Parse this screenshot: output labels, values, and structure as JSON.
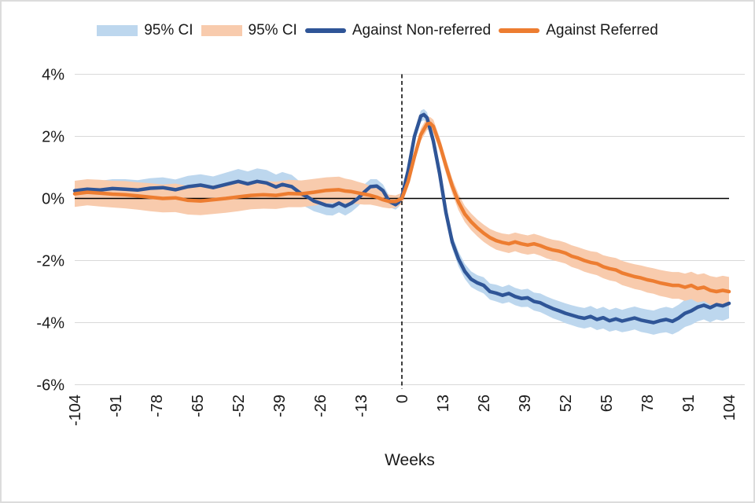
{
  "figure": {
    "background": "#ffffff",
    "border_color": "#dcdcdc"
  },
  "legend": {
    "items": [
      {
        "name": "legend-ci-nonreferred",
        "label": "95% CI",
        "swatch": "band",
        "color": "#BDD7EE"
      },
      {
        "name": "legend-ci-referred",
        "label": "95% CI",
        "swatch": "band",
        "color": "#F8CBAD"
      },
      {
        "name": "legend-against-non-referred",
        "label": "Against Non-referred",
        "swatch": "line",
        "color": "#2F5597"
      },
      {
        "name": "legend-against-referred",
        "label": "Against Referred",
        "swatch": "line",
        "color": "#ED7D31"
      }
    ]
  },
  "chart_data": {
    "type": "line",
    "title": "",
    "xlabel": "Weeks",
    "ylabel": "",
    "xlim": [
      -104,
      104
    ],
    "ylim": [
      -6,
      4
    ],
    "x_ticks": [
      -104,
      -91,
      -78,
      -65,
      -52,
      -39,
      -26,
      -13,
      0,
      13,
      26,
      39,
      52,
      65,
      78,
      91,
      104
    ],
    "y_ticks": [
      4,
      2,
      0,
      -2,
      -4,
      -6
    ],
    "y_tick_suffix": "%",
    "grid": "horizontal",
    "grid_color": "#d9d9d9",
    "reference_lines": {
      "horizontal_solid_at_y": 0,
      "vertical_dashed_at_x": 0,
      "color": "#000000"
    },
    "legend_position": "top",
    "series": [
      {
        "name": "Against Non-referred",
        "color": "#2F5597",
        "ci_color": "#BDD7EE",
        "ci_label": "95% CI",
        "points_format": [
          "week",
          "value_pct",
          "ci_half_width_pct"
        ],
        "points": [
          [
            -104,
            0.25,
            0.3
          ],
          [
            -100,
            0.3,
            0.3
          ],
          [
            -96,
            0.27,
            0.3
          ],
          [
            -92,
            0.32,
            0.3
          ],
          [
            -88,
            0.3,
            0.32
          ],
          [
            -84,
            0.27,
            0.32
          ],
          [
            -80,
            0.33,
            0.32
          ],
          [
            -76,
            0.35,
            0.33
          ],
          [
            -72,
            0.28,
            0.33
          ],
          [
            -68,
            0.38,
            0.35
          ],
          [
            -64,
            0.43,
            0.35
          ],
          [
            -60,
            0.35,
            0.36
          ],
          [
            -56,
            0.45,
            0.38
          ],
          [
            -52,
            0.55,
            0.4
          ],
          [
            -49,
            0.47,
            0.4
          ],
          [
            -46,
            0.55,
            0.42
          ],
          [
            -43,
            0.5,
            0.42
          ],
          [
            -40,
            0.37,
            0.4
          ],
          [
            -38,
            0.45,
            0.4
          ],
          [
            -35,
            0.38,
            0.38
          ],
          [
            -32,
            0.15,
            0.36
          ],
          [
            -30,
            0.05,
            0.35
          ],
          [
            -28,
            -0.08,
            0.33
          ],
          [
            -26,
            -0.15,
            0.32
          ],
          [
            -24,
            -0.22,
            0.32
          ],
          [
            -22,
            -0.25,
            0.3
          ],
          [
            -20,
            -0.15,
            0.3
          ],
          [
            -18,
            -0.25,
            0.3
          ],
          [
            -16,
            -0.15,
            0.28
          ],
          [
            -14,
            0.0,
            0.26
          ],
          [
            -12,
            0.2,
            0.25
          ],
          [
            -10,
            0.38,
            0.24
          ],
          [
            -8,
            0.4,
            0.22
          ],
          [
            -6,
            0.25,
            0.2
          ],
          [
            -4,
            -0.1,
            0.18
          ],
          [
            -2,
            -0.2,
            0.16
          ],
          [
            -1,
            -0.12,
            0.15
          ],
          [
            0,
            0.05,
            0.15
          ],
          [
            2,
            0.9,
            0.15
          ],
          [
            4,
            2.0,
            0.16
          ],
          [
            6,
            2.65,
            0.18
          ],
          [
            7,
            2.7,
            0.18
          ],
          [
            8,
            2.6,
            0.18
          ],
          [
            10,
            1.85,
            0.2
          ],
          [
            12,
            0.8,
            0.2
          ],
          [
            14,
            -0.45,
            0.22
          ],
          [
            16,
            -1.4,
            0.22
          ],
          [
            18,
            -1.95,
            0.24
          ],
          [
            20,
            -2.35,
            0.24
          ],
          [
            22,
            -2.6,
            0.25
          ],
          [
            24,
            -2.72,
            0.25
          ],
          [
            26,
            -2.8,
            0.26
          ],
          [
            28,
            -3.0,
            0.26
          ],
          [
            30,
            -3.05,
            0.27
          ],
          [
            32,
            -3.12,
            0.27
          ],
          [
            34,
            -3.06,
            0.28
          ],
          [
            36,
            -3.16,
            0.28
          ],
          [
            38,
            -3.22,
            0.28
          ],
          [
            40,
            -3.2,
            0.29
          ],
          [
            42,
            -3.32,
            0.29
          ],
          [
            44,
            -3.36,
            0.3
          ],
          [
            46,
            -3.46,
            0.3
          ],
          [
            48,
            -3.55,
            0.31
          ],
          [
            50,
            -3.62,
            0.31
          ],
          [
            52,
            -3.7,
            0.32
          ],
          [
            54,
            -3.76,
            0.32
          ],
          [
            56,
            -3.82,
            0.33
          ],
          [
            58,
            -3.86,
            0.33
          ],
          [
            60,
            -3.8,
            0.34
          ],
          [
            62,
            -3.9,
            0.34
          ],
          [
            64,
            -3.84,
            0.35
          ],
          [
            66,
            -3.94,
            0.35
          ],
          [
            68,
            -3.88,
            0.36
          ],
          [
            70,
            -3.95,
            0.36
          ],
          [
            72,
            -3.9,
            0.37
          ],
          [
            74,
            -3.85,
            0.37
          ],
          [
            76,
            -3.92,
            0.38
          ],
          [
            78,
            -3.96,
            0.38
          ],
          [
            80,
            -4.0,
            0.39
          ],
          [
            82,
            -3.94,
            0.4
          ],
          [
            84,
            -3.9,
            0.41
          ],
          [
            86,
            -3.96,
            0.42
          ],
          [
            88,
            -3.85,
            0.43
          ],
          [
            90,
            -3.7,
            0.44
          ],
          [
            92,
            -3.62,
            0.45
          ],
          [
            94,
            -3.5,
            0.46
          ],
          [
            96,
            -3.44,
            0.46
          ],
          [
            98,
            -3.52,
            0.47
          ],
          [
            100,
            -3.42,
            0.48
          ],
          [
            102,
            -3.46,
            0.48
          ],
          [
            104,
            -3.38,
            0.48
          ]
        ]
      },
      {
        "name": "Against Referred",
        "color": "#ED7D31",
        "ci_color": "#F8CBAD",
        "ci_label": "95% CI",
        "points_format": [
          "week",
          "value_pct",
          "ci_half_width_pct"
        ],
        "points": [
          [
            -104,
            0.15,
            0.42
          ],
          [
            -100,
            0.2,
            0.42
          ],
          [
            -96,
            0.17,
            0.43
          ],
          [
            -92,
            0.14,
            0.43
          ],
          [
            -88,
            0.12,
            0.44
          ],
          [
            -84,
            0.08,
            0.44
          ],
          [
            -80,
            0.04,
            0.45
          ],
          [
            -76,
            0.0,
            0.45
          ],
          [
            -72,
            0.02,
            0.46
          ],
          [
            -68,
            -0.06,
            0.46
          ],
          [
            -64,
            -0.08,
            0.46
          ],
          [
            -60,
            -0.04,
            0.46
          ],
          [
            -56,
            0.0,
            0.46
          ],
          [
            -52,
            0.05,
            0.46
          ],
          [
            -48,
            0.1,
            0.45
          ],
          [
            -44,
            0.12,
            0.45
          ],
          [
            -40,
            0.1,
            0.44
          ],
          [
            -36,
            0.16,
            0.44
          ],
          [
            -32,
            0.15,
            0.43
          ],
          [
            -28,
            0.2,
            0.43
          ],
          [
            -24,
            0.26,
            0.42
          ],
          [
            -20,
            0.28,
            0.42
          ],
          [
            -18,
            0.24,
            0.4
          ],
          [
            -16,
            0.22,
            0.38
          ],
          [
            -14,
            0.18,
            0.36
          ],
          [
            -12,
            0.14,
            0.34
          ],
          [
            -10,
            0.1,
            0.3
          ],
          [
            -8,
            0.04,
            0.28
          ],
          [
            -6,
            -0.04,
            0.25
          ],
          [
            -4,
            -0.1,
            0.22
          ],
          [
            -2,
            -0.1,
            0.2
          ],
          [
            0,
            0.0,
            0.18
          ],
          [
            2,
            0.55,
            0.18
          ],
          [
            4,
            1.35,
            0.18
          ],
          [
            6,
            2.05,
            0.2
          ],
          [
            8,
            2.4,
            0.2
          ],
          [
            9,
            2.42,
            0.2
          ],
          [
            10,
            2.32,
            0.22
          ],
          [
            12,
            1.75,
            0.22
          ],
          [
            14,
            1.05,
            0.24
          ],
          [
            16,
            0.4,
            0.24
          ],
          [
            18,
            -0.12,
            0.26
          ],
          [
            20,
            -0.5,
            0.26
          ],
          [
            22,
            -0.75,
            0.27
          ],
          [
            24,
            -0.95,
            0.27
          ],
          [
            26,
            -1.12,
            0.28
          ],
          [
            28,
            -1.26,
            0.28
          ],
          [
            30,
            -1.36,
            0.29
          ],
          [
            32,
            -1.42,
            0.29
          ],
          [
            34,
            -1.46,
            0.3
          ],
          [
            36,
            -1.4,
            0.3
          ],
          [
            38,
            -1.46,
            0.31
          ],
          [
            40,
            -1.5,
            0.31
          ],
          [
            42,
            -1.46,
            0.32
          ],
          [
            44,
            -1.52,
            0.32
          ],
          [
            46,
            -1.6,
            0.33
          ],
          [
            48,
            -1.66,
            0.33
          ],
          [
            50,
            -1.7,
            0.34
          ],
          [
            52,
            -1.76,
            0.34
          ],
          [
            54,
            -1.86,
            0.35
          ],
          [
            56,
            -1.92,
            0.35
          ],
          [
            58,
            -2.0,
            0.36
          ],
          [
            60,
            -2.06,
            0.36
          ],
          [
            62,
            -2.1,
            0.37
          ],
          [
            64,
            -2.2,
            0.37
          ],
          [
            66,
            -2.26,
            0.38
          ],
          [
            68,
            -2.3,
            0.38
          ],
          [
            70,
            -2.4,
            0.39
          ],
          [
            72,
            -2.46,
            0.39
          ],
          [
            74,
            -2.52,
            0.4
          ],
          [
            76,
            -2.56,
            0.4
          ],
          [
            78,
            -2.62,
            0.41
          ],
          [
            80,
            -2.66,
            0.41
          ],
          [
            82,
            -2.72,
            0.42
          ],
          [
            84,
            -2.76,
            0.42
          ],
          [
            86,
            -2.8,
            0.43
          ],
          [
            88,
            -2.8,
            0.43
          ],
          [
            90,
            -2.86,
            0.44
          ],
          [
            92,
            -2.8,
            0.44
          ],
          [
            94,
            -2.9,
            0.45
          ],
          [
            96,
            -2.86,
            0.45
          ],
          [
            98,
            -2.96,
            0.46
          ],
          [
            100,
            -3.0,
            0.46
          ],
          [
            102,
            -2.96,
            0.47
          ],
          [
            104,
            -3.0,
            0.47
          ]
        ]
      }
    ]
  }
}
